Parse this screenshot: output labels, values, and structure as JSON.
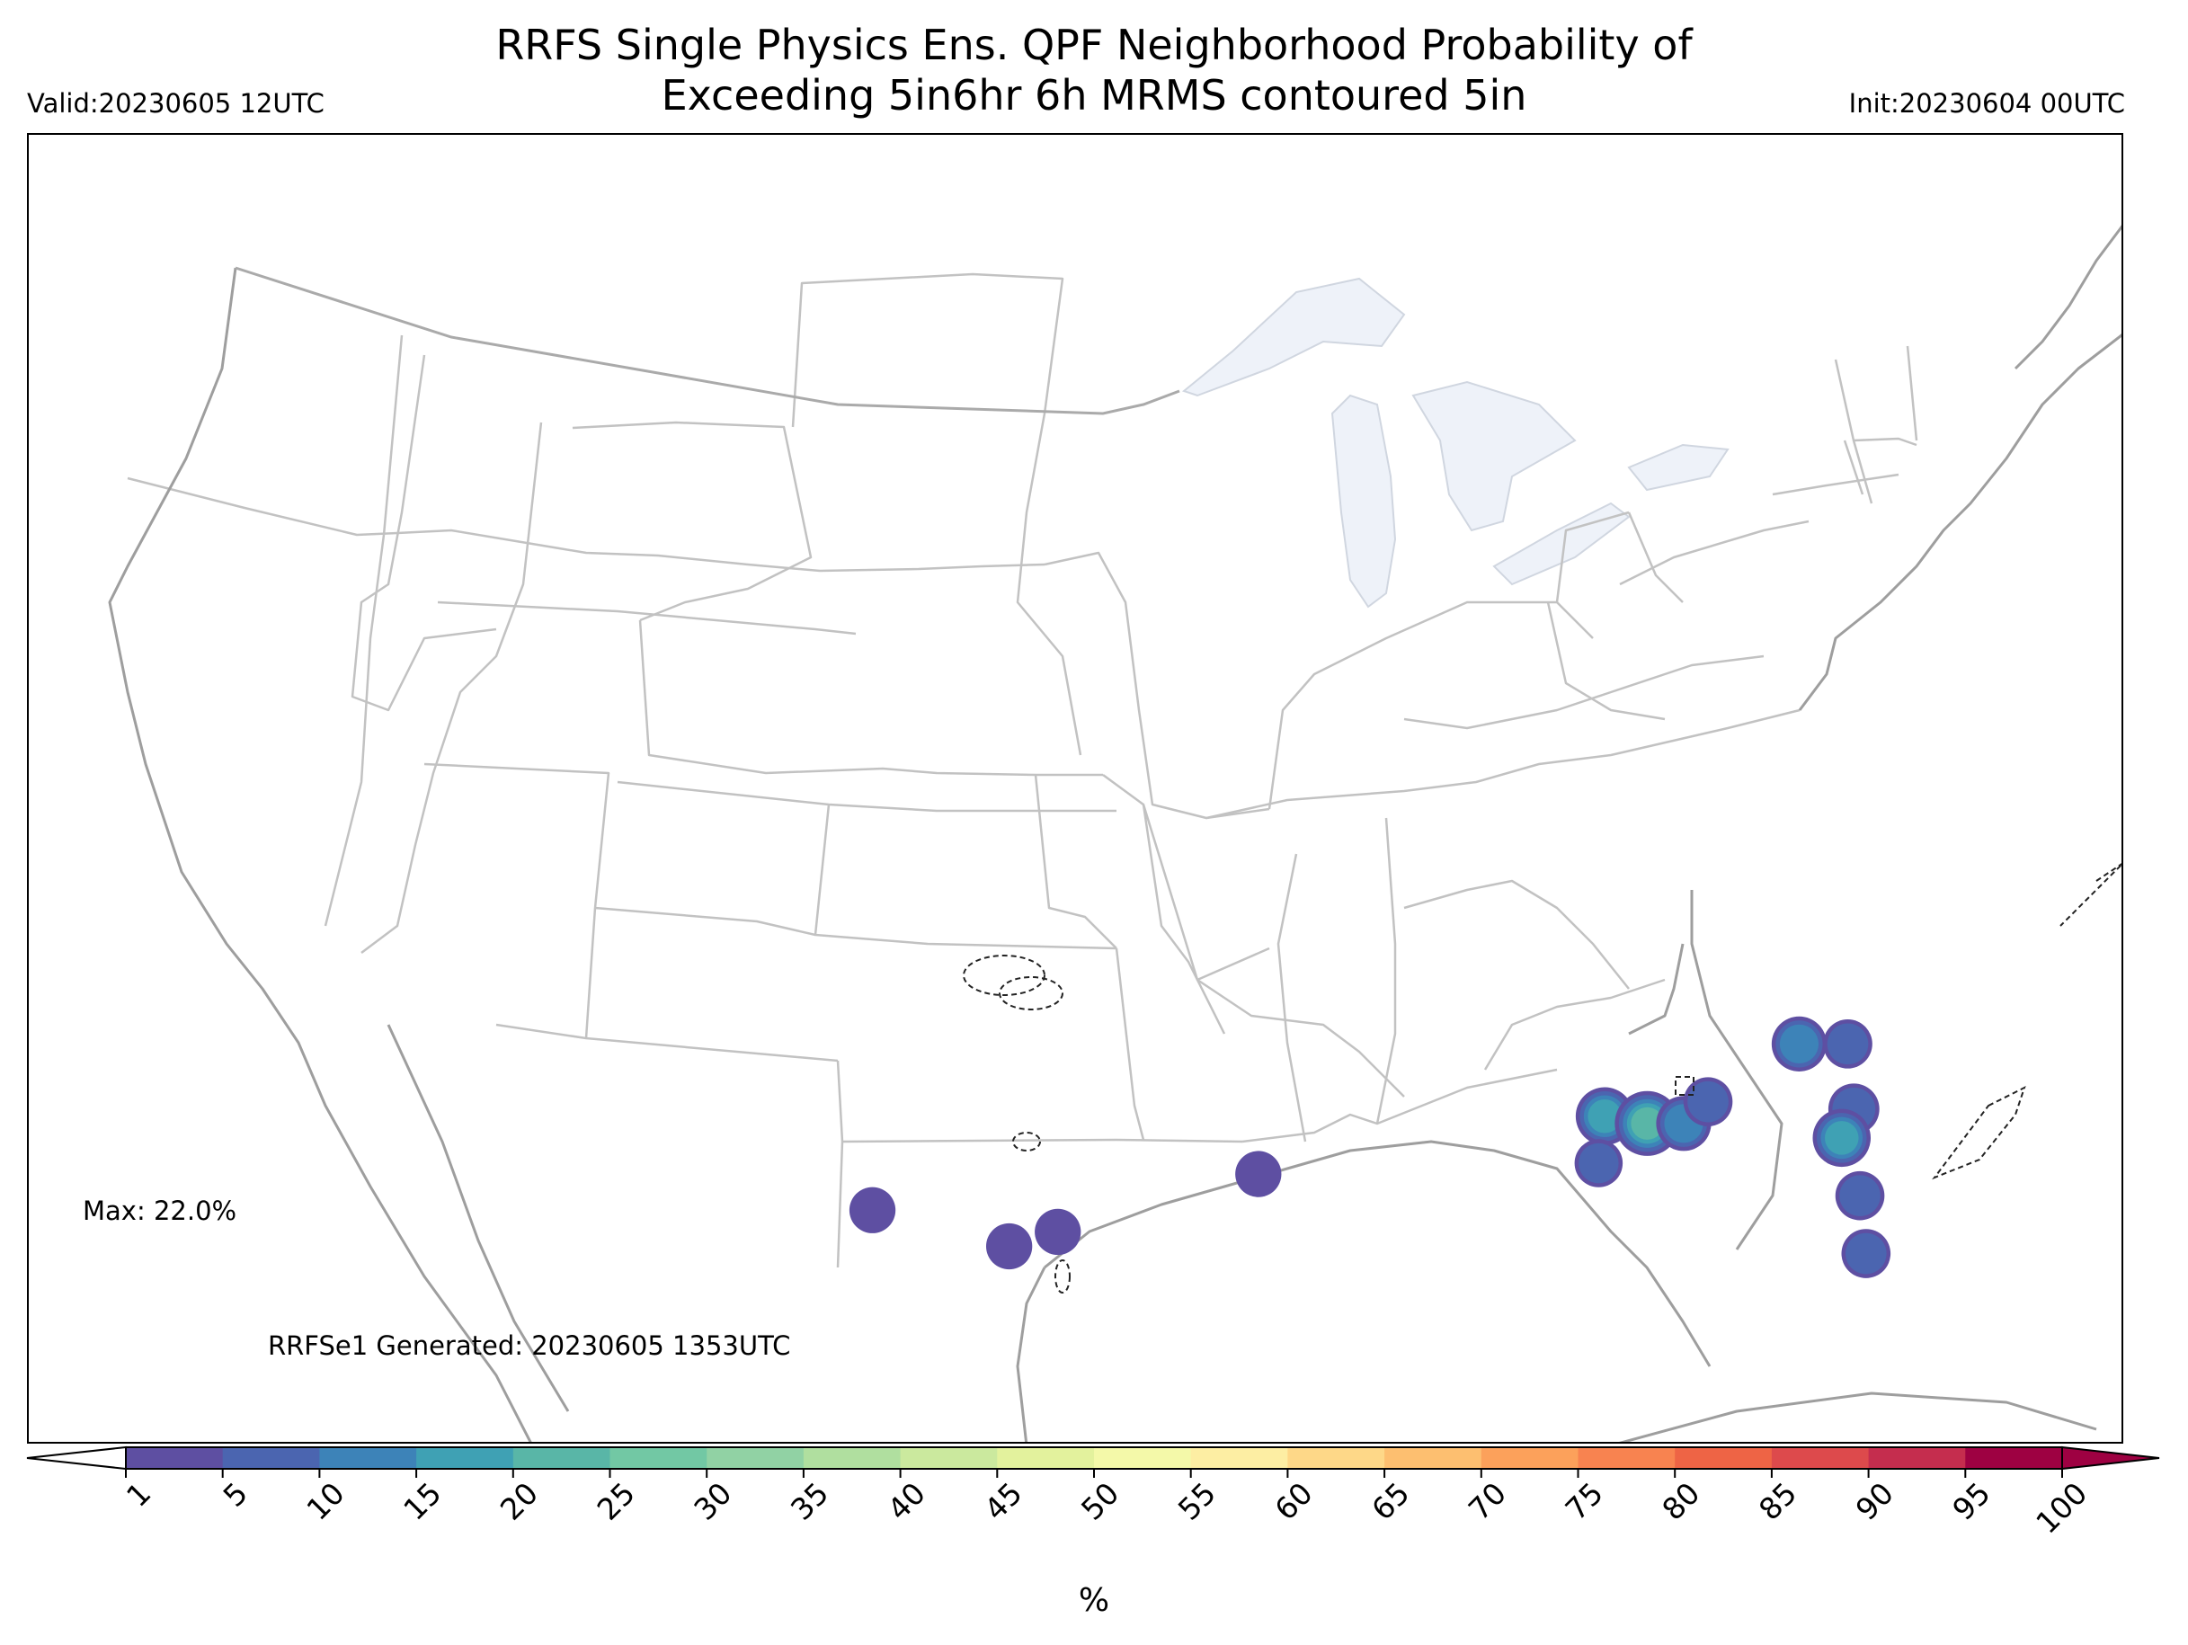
{
  "header": {
    "title_line1": "RRFS Single Physics Ens. QPF Neighborhood Probability of",
    "title_line2": "Exceeding 5in6hr 6h MRMS contoured 5in",
    "valid": "Valid:20230605 12UTC",
    "init": "Init:20230604 00UTC"
  },
  "annotations": {
    "max": "Max: 22.0%",
    "generated": "RRFSe1 Generated: 20230605 1353UTC"
  },
  "colorbar": {
    "label": "%",
    "ticks": [
      "1",
      "5",
      "10",
      "15",
      "20",
      "25",
      "30",
      "35",
      "40",
      "45",
      "50",
      "55",
      "60",
      "65",
      "70",
      "75",
      "80",
      "85",
      "90",
      "95",
      "100"
    ],
    "colors": [
      "#5e4fa2",
      "#4b65b0",
      "#3d83b8",
      "#3fa1b4",
      "#59b6a7",
      "#72c8a4",
      "#91d2a4",
      "#b0df9f",
      "#cbe99e",
      "#e3f29d",
      "#f4f9a9",
      "#fdeea3",
      "#fed888",
      "#fdbf70",
      "#fca15b",
      "#f88350",
      "#ee6445",
      "#dd4a4c",
      "#c52d4e",
      "#9e0142"
    ]
  },
  "map": {
    "state_line_color": "#c2c2c2",
    "coast_color": "#9e9e9e",
    "lake_fill": "#eef2f9",
    "probability_areas": [
      {
        "lon": -103.7,
        "lat": 28.6,
        "pct": 3
      },
      {
        "lon": -99.2,
        "lat": 27.6,
        "pct": 3
      },
      {
        "lon": -97.6,
        "lat": 28.0,
        "pct": 3
      },
      {
        "lon": -91.0,
        "lat": 29.6,
        "pct": 3
      },
      {
        "lon": -79.6,
        "lat": 31.2,
        "pct": 15
      },
      {
        "lon": -78.2,
        "lat": 31.0,
        "pct": 22
      },
      {
        "lon": -77.0,
        "lat": 31.0,
        "pct": 12
      },
      {
        "lon": -76.2,
        "lat": 31.6,
        "pct": 6
      },
      {
        "lon": -79.8,
        "lat": 29.9,
        "pct": 5
      },
      {
        "lon": -73.2,
        "lat": 33.2,
        "pct": 12
      },
      {
        "lon": -71.6,
        "lat": 33.2,
        "pct": 6
      },
      {
        "lon": -71.4,
        "lat": 31.4,
        "pct": 8
      },
      {
        "lon": -71.8,
        "lat": 30.6,
        "pct": 15
      },
      {
        "lon": -71.2,
        "lat": 29.0,
        "pct": 6
      },
      {
        "lon": -71.0,
        "lat": 27.4,
        "pct": 6
      }
    ]
  }
}
